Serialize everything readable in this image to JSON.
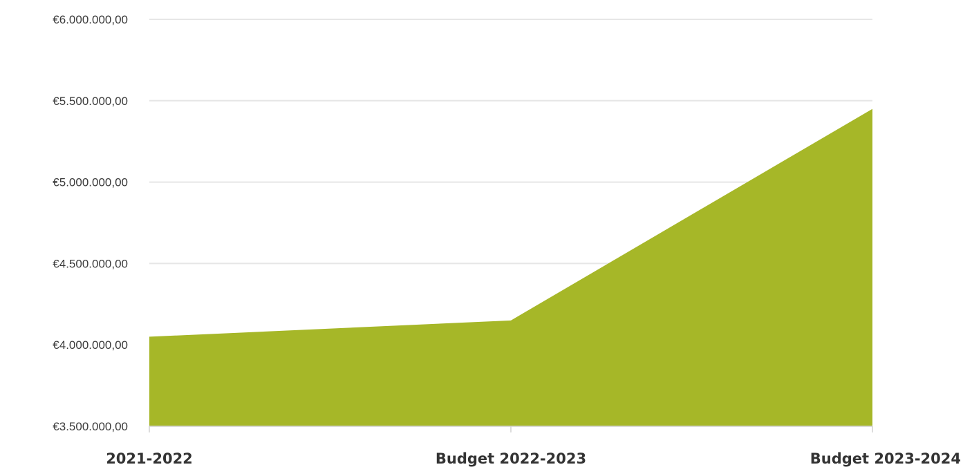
{
  "chart_data": {
    "type": "area",
    "categories": [
      "2021-2022",
      "Budget 2022-2023",
      "Budget 2023-2024"
    ],
    "values": [
      4050000,
      4150000,
      5450000
    ],
    "ylim": [
      3500000,
      6000000
    ],
    "yticks": [
      3500000,
      4000000,
      4500000,
      5000000,
      5500000,
      6000000
    ],
    "ytick_labels": [
      "€3.500.000,00",
      "€4.000.000,00",
      "€4.500.000,00",
      "€5.000.000,00",
      "€5.500.000,00",
      "€6.000.000,00"
    ],
    "grid": true,
    "title": "",
    "xlabel": "",
    "ylabel": "",
    "colors": {
      "fill": "#a6b728",
      "grid": "#e6e6e6",
      "axis": "#d0d0d0"
    }
  }
}
